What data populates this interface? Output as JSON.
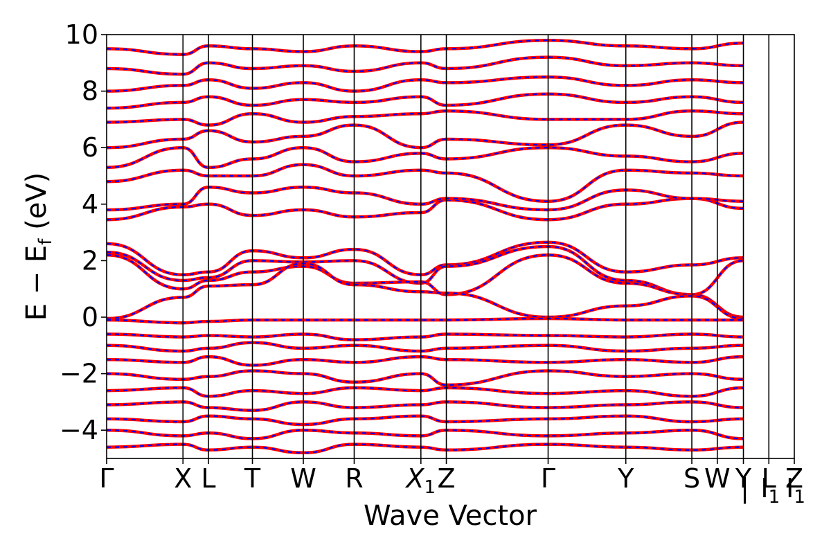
{
  "chart_data": {
    "type": "line",
    "title": "",
    "xlabel": "Wave Vector",
    "ylabel": "E − E",
    "ylabel_subscript": "f",
    "ylabel_unit": "(eV)",
    "ylim": [
      -5,
      10
    ],
    "yticks": [
      -4,
      -2,
      0,
      2,
      4,
      6,
      8,
      10
    ],
    "ytick_labels": [
      "−4",
      "−2",
      "0",
      "2",
      "4",
      "6",
      "8",
      "10"
    ],
    "grid": false,
    "legend": "none",
    "xlim": [
      0,
      1
    ],
    "high_symmetry_points": [
      {
        "pos": 0.0,
        "label": "Γ"
      },
      {
        "pos": 0.111,
        "label": "X"
      },
      {
        "pos": 0.148,
        "label": "L"
      },
      {
        "pos": 0.212,
        "label": "T"
      },
      {
        "pos": 0.286,
        "label": "W"
      },
      {
        "pos": 0.36,
        "label": "R"
      },
      {
        "pos": 0.457,
        "label": "X",
        "sub": "1"
      },
      {
        "pos": 0.494,
        "label": "Z"
      },
      {
        "pos": 0.642,
        "label": "Γ"
      },
      {
        "pos": 0.755,
        "label": "Y"
      },
      {
        "pos": 0.851,
        "label": "S"
      },
      {
        "pos": 0.888,
        "label": "W"
      },
      {
        "pos": 0.926,
        "label": "Y"
      },
      {
        "pos": 0.963,
        "label": "L"
      },
      {
        "pos": 1.0,
        "label": "Z"
      }
    ],
    "extra_tick_labels": [
      {
        "pos": 0.926,
        "label": "|"
      },
      {
        "pos": 0.963,
        "label": "I",
        "sub": "1"
      },
      {
        "pos": 1.0,
        "label": "I",
        "sub": "1"
      }
    ],
    "series_colors": {
      "solid": "#ff0000",
      "dashed": "#0000ff"
    },
    "bands": [
      {
        "name": "",
        "x": [
          0,
          0.111,
          0.148,
          0.212,
          0.286,
          0.36,
          0.457,
          0.494,
          0.642,
          0.755,
          0.851,
          0.926
        ],
        "y": [
          2.6,
          1.5,
          1.6,
          2.35,
          2.1,
          2.4,
          1.5,
          1.85,
          2.65,
          1.6,
          1.85,
          2.1
        ]
      },
      {
        "name": "",
        "x": [
          0,
          0.111,
          0.148,
          0.212,
          0.286,
          0.36,
          0.457,
          0.494,
          0.642,
          0.755,
          0.851,
          0.926
        ],
        "y": [
          2.3,
          1.3,
          1.4,
          2.0,
          1.95,
          2.0,
          1.2,
          1.8,
          2.5,
          1.3,
          0.8,
          2.0
        ]
      },
      {
        "name": "",
        "x": [
          0,
          0.111,
          0.148,
          0.212,
          0.286,
          0.36,
          0.457,
          0.494,
          0.642,
          0.755,
          0.851,
          0.926
        ],
        "y": [
          2.2,
          1.0,
          1.3,
          1.6,
          1.8,
          1.2,
          1.25,
          0.8,
          2.2,
          1.2,
          0.8,
          0.0
        ]
      },
      {
        "name": "",
        "x": [
          0,
          0.111,
          0.148,
          0.212,
          0.286,
          0.36,
          0.457,
          0.494,
          0.642,
          0.755,
          0.851,
          0.926
        ],
        "y": [
          -0.05,
          0.7,
          1.1,
          1.15,
          1.9,
          1.15,
          0.9,
          0.85,
          0.0,
          0.4,
          0.75,
          -0.05
        ]
      },
      {
        "name": "",
        "x": [
          0,
          0.111,
          0.148,
          0.212,
          0.286,
          0.36,
          0.457,
          0.494,
          0.642,
          0.755,
          0.851,
          0.926
        ],
        "y": [
          -0.1,
          -0.2,
          -0.15,
          -0.1,
          -0.1,
          -0.1,
          -0.1,
          -0.1,
          -0.05,
          -0.1,
          -0.1,
          -0.1
        ]
      },
      {
        "name": "",
        "x": [
          0,
          0.111,
          0.148,
          0.212,
          0.286,
          0.36,
          0.457,
          0.494,
          0.642,
          0.755,
          0.851,
          0.926
        ],
        "y": [
          3.45,
          3.9,
          4.0,
          3.6,
          3.8,
          3.55,
          3.7,
          4.15,
          3.45,
          4.0,
          4.2,
          3.85
        ]
      },
      {
        "name": "",
        "x": [
          0,
          0.111,
          0.148,
          0.212,
          0.286,
          0.36,
          0.457,
          0.494,
          0.642,
          0.755,
          0.851,
          0.926
        ],
        "y": [
          3.8,
          4.0,
          4.6,
          4.4,
          4.6,
          4.4,
          4.0,
          4.2,
          3.8,
          4.5,
          4.2,
          4.1
        ]
      },
      {
        "name": "",
        "x": [
          0,
          0.111,
          0.148,
          0.212,
          0.286,
          0.36,
          0.457,
          0.494,
          0.642,
          0.755,
          0.851,
          0.926
        ],
        "y": [
          4.8,
          5.2,
          5.0,
          5.0,
          5.4,
          5.0,
          5.2,
          5.1,
          4.1,
          5.2,
          5.1,
          5.0
        ]
      },
      {
        "name": "",
        "x": [
          0,
          0.111,
          0.148,
          0.212,
          0.286,
          0.36,
          0.457,
          0.494,
          0.642,
          0.755,
          0.851,
          0.926
        ],
        "y": [
          5.3,
          6.0,
          5.3,
          5.6,
          6.0,
          5.5,
          5.8,
          5.6,
          6.0,
          5.7,
          5.5,
          5.8
        ]
      },
      {
        "name": "",
        "x": [
          0,
          0.111,
          0.148,
          0.212,
          0.286,
          0.36,
          0.457,
          0.494,
          0.642,
          0.755,
          0.851,
          0.926
        ],
        "y": [
          6.0,
          6.3,
          6.6,
          6.2,
          6.4,
          6.8,
          6.0,
          6.3,
          6.1,
          6.8,
          6.4,
          6.9
        ]
      },
      {
        "name": "",
        "x": [
          0,
          0.111,
          0.148,
          0.212,
          0.286,
          0.36,
          0.457,
          0.494,
          0.642,
          0.755,
          0.851,
          0.926
        ],
        "y": [
          6.9,
          7.0,
          6.8,
          7.2,
          6.9,
          7.1,
          7.2,
          7.3,
          7.0,
          7.0,
          7.3,
          7.2
        ]
      },
      {
        "name": "",
        "x": [
          0,
          0.111,
          0.148,
          0.212,
          0.286,
          0.36,
          0.457,
          0.494,
          0.642,
          0.755,
          0.851,
          0.926
        ],
        "y": [
          7.4,
          7.6,
          7.8,
          7.5,
          7.7,
          7.6,
          7.8,
          7.5,
          7.9,
          7.6,
          7.8,
          7.6
        ]
      },
      {
        "name": "",
        "x": [
          0,
          0.111,
          0.148,
          0.212,
          0.286,
          0.36,
          0.457,
          0.494,
          0.642,
          0.755,
          0.851,
          0.926
        ],
        "y": [
          8.0,
          8.2,
          8.4,
          8.1,
          8.3,
          8.0,
          8.4,
          8.3,
          8.5,
          8.2,
          8.4,
          8.3
        ]
      },
      {
        "name": "",
        "x": [
          0,
          0.111,
          0.148,
          0.212,
          0.286,
          0.36,
          0.457,
          0.494,
          0.642,
          0.755,
          0.851,
          0.926
        ],
        "y": [
          8.8,
          8.6,
          9.0,
          8.8,
          8.9,
          8.7,
          9.0,
          8.8,
          9.2,
          8.9,
          9.0,
          8.9
        ]
      },
      {
        "name": "",
        "x": [
          0,
          0.111,
          0.148,
          0.212,
          0.286,
          0.36,
          0.457,
          0.494,
          0.642,
          0.755,
          0.851,
          0.926
        ],
        "y": [
          9.5,
          9.3,
          9.6,
          9.5,
          9.4,
          9.6,
          9.4,
          9.5,
          9.8,
          9.6,
          9.5,
          9.7
        ]
      },
      {
        "name": "",
        "x": [
          0,
          0.111,
          0.148,
          0.212,
          0.286,
          0.36,
          0.457,
          0.494,
          0.642,
          0.755,
          0.851,
          0.926
        ],
        "y": [
          -0.6,
          -0.7,
          -0.65,
          -0.7,
          -0.6,
          -0.8,
          -0.7,
          -0.6,
          -0.65,
          -0.7,
          -0.6,
          -0.7
        ]
      },
      {
        "name": "",
        "x": [
          0,
          0.111,
          0.148,
          0.212,
          0.286,
          0.36,
          0.457,
          0.494,
          0.642,
          0.755,
          0.851,
          0.926
        ],
        "y": [
          -1.0,
          -1.2,
          -1.1,
          -0.9,
          -1.1,
          -1.0,
          -1.2,
          -1.1,
          -1.0,
          -1.2,
          -1.1,
          -1.0
        ]
      },
      {
        "name": "",
        "x": [
          0,
          0.111,
          0.148,
          0.212,
          0.286,
          0.36,
          0.457,
          0.494,
          0.642,
          0.755,
          0.851,
          0.926
        ],
        "y": [
          -1.5,
          -1.6,
          -1.4,
          -1.7,
          -1.5,
          -1.6,
          -1.4,
          -1.5,
          -1.6,
          -1.5,
          -1.6,
          -1.4
        ]
      },
      {
        "name": "",
        "x": [
          0,
          0.111,
          0.148,
          0.212,
          0.286,
          0.36,
          0.457,
          0.494,
          0.642,
          0.755,
          0.851,
          0.926
        ],
        "y": [
          -2.0,
          -2.2,
          -2.1,
          -1.9,
          -2.0,
          -2.3,
          -2.0,
          -2.4,
          -1.9,
          -2.1,
          -2.0,
          -2.2
        ]
      },
      {
        "name": "",
        "x": [
          0,
          0.111,
          0.148,
          0.212,
          0.286,
          0.36,
          0.457,
          0.494,
          0.642,
          0.755,
          0.851,
          0.926
        ],
        "y": [
          -2.6,
          -2.5,
          -2.8,
          -2.6,
          -2.7,
          -2.5,
          -2.6,
          -2.5,
          -2.7,
          -2.6,
          -2.8,
          -2.5
        ]
      },
      {
        "name": "",
        "x": [
          0,
          0.111,
          0.148,
          0.212,
          0.286,
          0.36,
          0.457,
          0.494,
          0.642,
          0.755,
          0.851,
          0.926
        ],
        "y": [
          -3.1,
          -3.0,
          -3.2,
          -3.3,
          -3.0,
          -3.2,
          -3.1,
          -3.0,
          -3.2,
          -3.1,
          -3.0,
          -3.2
        ]
      },
      {
        "name": "",
        "x": [
          0,
          0.111,
          0.148,
          0.212,
          0.286,
          0.36,
          0.457,
          0.494,
          0.642,
          0.755,
          0.851,
          0.926
        ],
        "y": [
          -3.6,
          -3.7,
          -3.5,
          -3.6,
          -3.8,
          -3.6,
          -3.5,
          -3.7,
          -3.6,
          -3.5,
          -3.7,
          -3.6
        ]
      },
      {
        "name": "",
        "x": [
          0,
          0.111,
          0.148,
          0.212,
          0.286,
          0.36,
          0.457,
          0.494,
          0.642,
          0.755,
          0.851,
          0.926
        ],
        "y": [
          -4.0,
          -4.2,
          -4.1,
          -4.3,
          -4.0,
          -4.1,
          -4.2,
          -4.0,
          -4.2,
          -4.1,
          -4.0,
          -4.3
        ]
      },
      {
        "name": "",
        "x": [
          0,
          0.111,
          0.148,
          0.212,
          0.286,
          0.36,
          0.457,
          0.494,
          0.642,
          0.755,
          0.851,
          0.926
        ],
        "y": [
          -4.6,
          -4.5,
          -4.7,
          -4.6,
          -4.8,
          -4.5,
          -4.6,
          -4.7,
          -4.5,
          -4.6,
          -4.7,
          -4.6
        ]
      }
    ]
  }
}
